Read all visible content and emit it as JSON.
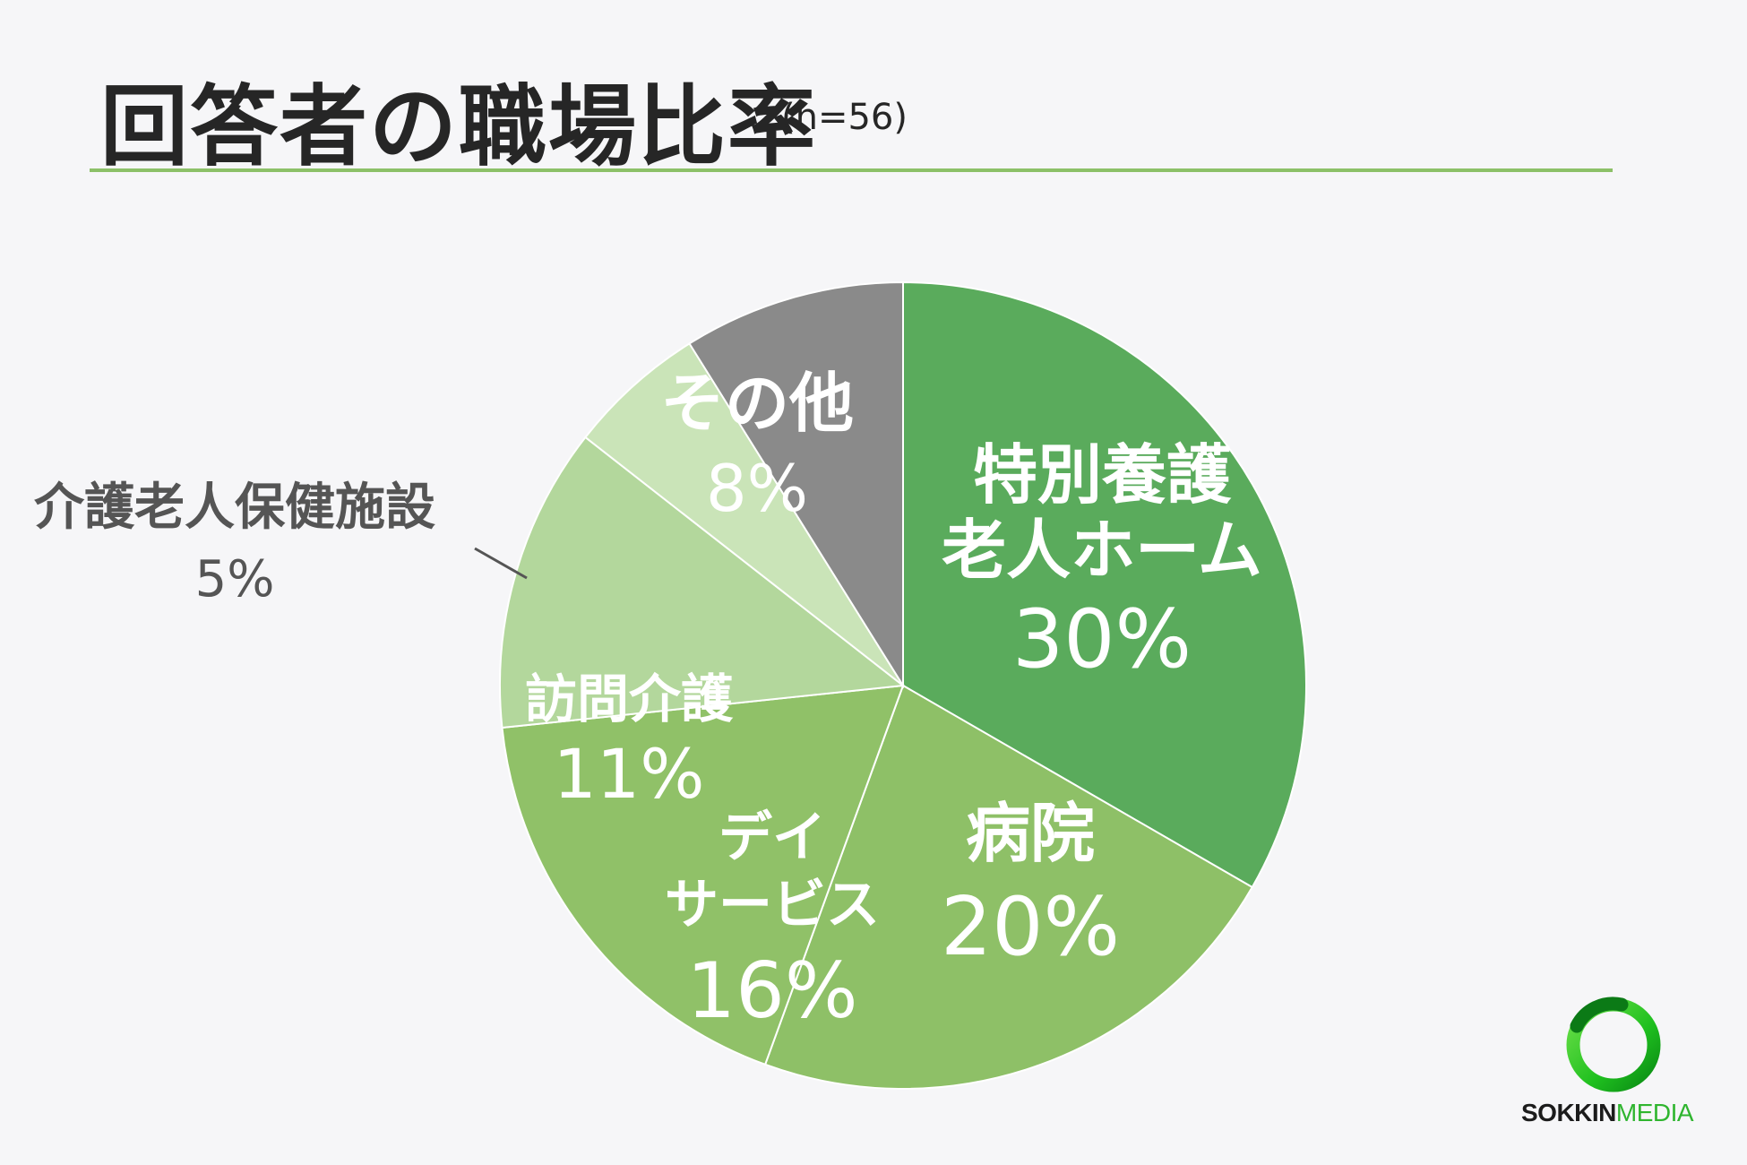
{
  "header": {
    "title": "回答者の職場比率",
    "sample": "(n=56)"
  },
  "chart_data": {
    "type": "pie",
    "start_angle": "12 o'clock",
    "direction": "clockwise",
    "slices": [
      {
        "label_lines": [
          "特別養護",
          "老人ホーム"
        ],
        "value": 30,
        "value_label": "30%",
        "color": "#5aab5c"
      },
      {
        "label_lines": [
          "病院"
        ],
        "value": 20,
        "value_label": "20%",
        "color": "#8ec067"
      },
      {
        "label_lines": [
          "デイ",
          "サービス"
        ],
        "value": 16,
        "value_label": "16%",
        "color": "#90c168"
      },
      {
        "label_lines": [
          "訪問介護"
        ],
        "value": 11,
        "value_label": "11%",
        "color": "#b3d79c"
      },
      {
        "label_lines": [
          "介護老人保健施設"
        ],
        "value": 5,
        "value_label": "5%",
        "color": "#cae4b8"
      },
      {
        "label_lines": [
          "その他"
        ],
        "value": 8,
        "value_label": "8%",
        "color": "#8a8a8a"
      }
    ],
    "label_text_colors": [
      "#ffffff",
      "#ffffff",
      "#ffffff",
      "#ffffff",
      "#555555",
      "#ffffff"
    ]
  },
  "logo": {
    "part1": "SOKKIN",
    "part2": "MEDIA",
    "ring_color": "#1fc01f"
  }
}
